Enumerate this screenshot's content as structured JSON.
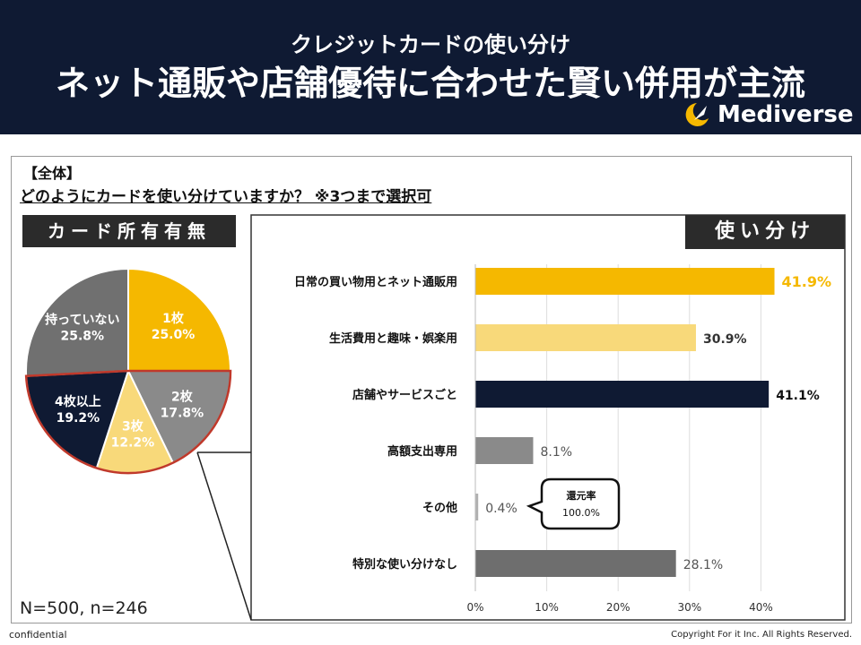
{
  "header": {
    "subtitle": "クレジットカードの使い分け",
    "title": "ネット通販や店舗優待に合わせた賢い併用が主流",
    "brand": "Mediverse"
  },
  "question": {
    "tag": "【全体】",
    "text": "どのようにカードを使い分けていますか？ ※3つまで選択可"
  },
  "left_heading": "カード所有有無",
  "right_heading": "使い分け",
  "sample_size": "N=500, n=246",
  "callout": {
    "line1": "還元率",
    "line2": "100.0%"
  },
  "footer": {
    "confidential": "confidential",
    "copyright": "Copyright For it Inc. All Rights Reserved."
  },
  "colors": {
    "gold": "#f5b800",
    "light_gold": "#f8d97a",
    "navy": "#0f1a33",
    "gray": "#8a8a8a",
    "dark_gray": "#6e6e6e",
    "red_outline": "#c0392b"
  },
  "chart_data": [
    {
      "type": "pie",
      "title": "カード所有有無",
      "slices": [
        {
          "label": "1枚",
          "value": 25.0,
          "display": "25.0%",
          "color": "#f5b800"
        },
        {
          "label": "2枚",
          "value": 17.8,
          "display": "17.8%",
          "color": "#8a8a8a"
        },
        {
          "label": "3枚",
          "value": 12.2,
          "display": "12.2%",
          "color": "#f8d97a"
        },
        {
          "label": "4枚以上",
          "value": 19.2,
          "display": "19.2%",
          "color": "#0f1a33"
        },
        {
          "label": "持っていない",
          "value": 25.8,
          "display": "25.8%",
          "color": "#707070"
        }
      ],
      "highlighted": [
        "2枚",
        "3枚",
        "4枚以上"
      ]
    },
    {
      "type": "bar",
      "orientation": "horizontal",
      "title": "使い分け",
      "categories": [
        "日常の買い物用とネット通販用",
        "生活費用と趣味・娯楽用",
        "店舗やサービスごと",
        "高額支出専用",
        "その他",
        "特別な使い分けなし"
      ],
      "values": [
        41.9,
        30.9,
        41.1,
        8.1,
        0.4,
        28.1
      ],
      "labels": [
        "41.9%",
        "30.9%",
        "41.1%",
        "8.1%",
        "0.4%",
        "28.1%"
      ],
      "colors": [
        "#f5b800",
        "#f8d97a",
        "#0f1a33",
        "#8a8a8a",
        "#b0b0b0",
        "#6e6e6e"
      ],
      "label_colors": [
        "#f5b800",
        "#333333",
        "#111111",
        "#555555",
        "#555555",
        "#555555"
      ],
      "xlim": [
        0,
        50
      ],
      "xticks": [
        0,
        10,
        20,
        30,
        40
      ],
      "xtick_labels": [
        "0%",
        "10%",
        "20%",
        "30%",
        "40%"
      ],
      "grid": true
    }
  ]
}
